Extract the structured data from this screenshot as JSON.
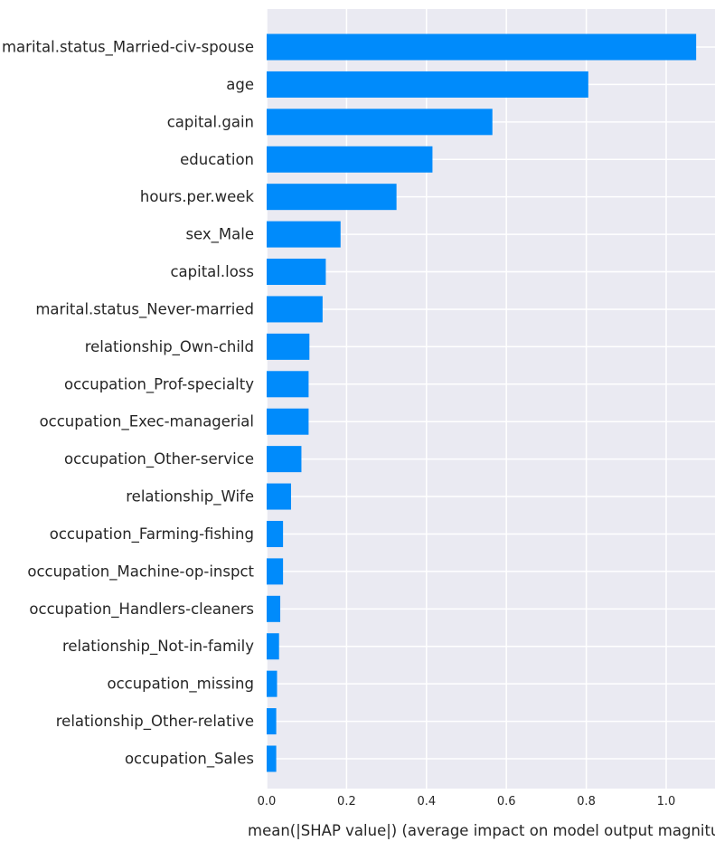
{
  "chart_data": {
    "type": "bar",
    "orientation": "horizontal",
    "title": "",
    "xlabel": "mean(|SHAP value|) (average impact on model output magnitude)",
    "ylabel": "",
    "xlim": [
      0,
      1.12
    ],
    "xticks": [
      0.0,
      0.2,
      0.4,
      0.6,
      0.8,
      1.0
    ],
    "xtick_labels": [
      "0.0",
      "0.2",
      "0.4",
      "0.6",
      "0.8",
      "1.0"
    ],
    "grid": true,
    "colors": {
      "bar": "#008bfb",
      "plot_background": "#eaeaf2",
      "grid": "#ffffff",
      "text": "#262626"
    },
    "categories": [
      "marital.status_Married-civ-spouse",
      "age",
      "capital.gain",
      "education",
      "hours.per.week",
      "sex_Male",
      "capital.loss",
      "marital.status_Never-married",
      "relationship_Own-child",
      "occupation_Prof-specialty",
      "occupation_Exec-managerial",
      "occupation_Other-service",
      "relationship_Wife",
      "occupation_Farming-fishing",
      "occupation_Machine-op-inspct",
      "occupation_Handlers-cleaners",
      "relationship_Not-in-family",
      "occupation_missing",
      "relationship_Other-relative",
      "occupation_Sales"
    ],
    "values": [
      1.075,
      0.805,
      0.565,
      0.415,
      0.325,
      0.185,
      0.148,
      0.14,
      0.107,
      0.105,
      0.105,
      0.087,
      0.061,
      0.041,
      0.041,
      0.034,
      0.031,
      0.026,
      0.024,
      0.024
    ]
  }
}
